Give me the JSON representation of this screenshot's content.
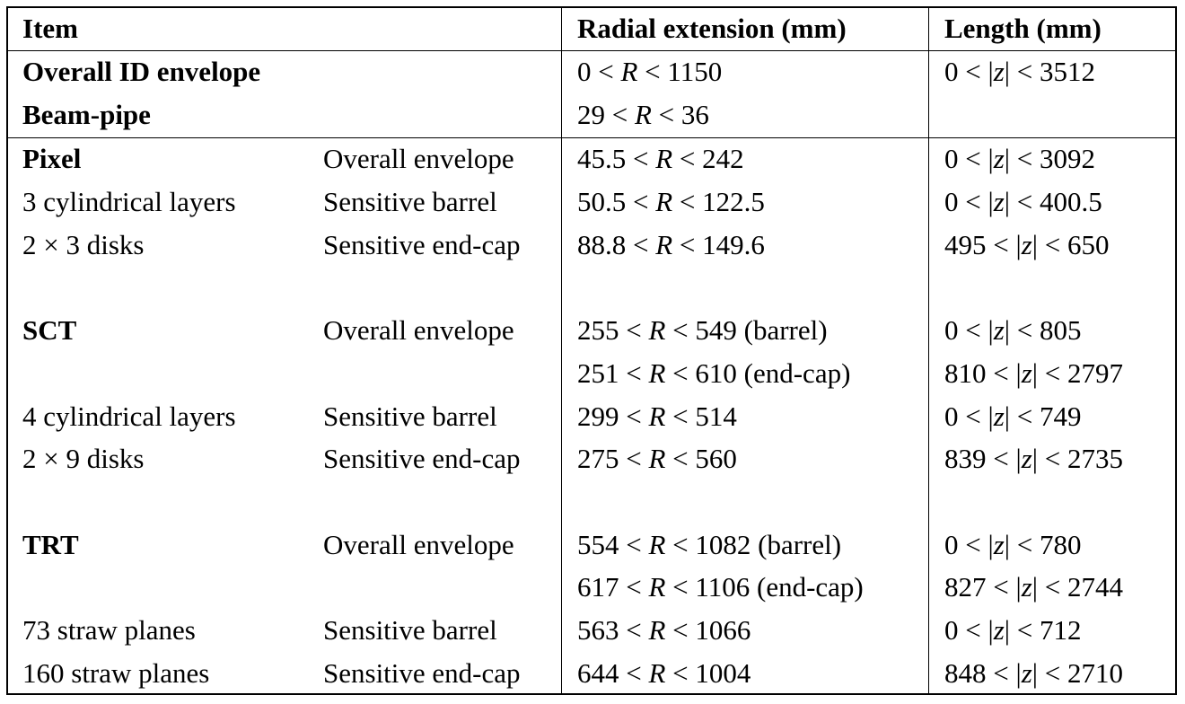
{
  "header": {
    "item": "Item",
    "radial": "Radial extension (mm)",
    "length": "Length (mm)"
  },
  "rows": [
    {
      "item": "Overall ID envelope",
      "item_bold": true,
      "type": "",
      "radial": "0 < R < 1150",
      "length": "0 < |z| < 3512"
    },
    {
      "item": "Beam-pipe",
      "item_bold": true,
      "type": "",
      "radial": "29 < R < 36",
      "length": ""
    },
    {
      "item": "Pixel",
      "item_bold": true,
      "type": "Overall envelope",
      "radial": "45.5 < R < 242",
      "length": "0 < |z| < 3092"
    },
    {
      "item": "3 cylindrical layers",
      "item_bold": false,
      "type": "Sensitive barrel",
      "radial": "50.5 < R < 122.5",
      "length": "0 < |z| < 400.5"
    },
    {
      "item": "2 × 3 disks",
      "item_bold": false,
      "type": "Sensitive end-cap",
      "radial": "88.8 < R < 149.6",
      "length": "495 < |z| < 650"
    },
    {
      "item": "SCT",
      "item_bold": true,
      "type": "Overall envelope",
      "radial": "255 < R < 549 (barrel)",
      "length": "0 < |z| < 805"
    },
    {
      "item": "",
      "item_bold": false,
      "type": "",
      "radial": "251 < R < 610 (end-cap)",
      "length": "810 < |z| < 2797"
    },
    {
      "item": "4 cylindrical layers",
      "item_bold": false,
      "type": "Sensitive barrel",
      "radial": "299 < R < 514",
      "length": "0 < |z| < 749"
    },
    {
      "item": "2 × 9 disks",
      "item_bold": false,
      "type": "Sensitive end-cap",
      "radial": "275 < R < 560",
      "length": "839 < |z| < 2735"
    },
    {
      "item": "TRT",
      "item_bold": true,
      "type": "Overall envelope",
      "radial": "554 < R < 1082 (barrel)",
      "length": "0 < |z| < 780"
    },
    {
      "item": "",
      "item_bold": false,
      "type": "",
      "radial": "617 < R < 1106 (end-cap)",
      "length": "827 < |z| < 2744"
    },
    {
      "item": "73 straw planes",
      "item_bold": false,
      "type": "Sensitive barrel",
      "radial": "563 < R < 1066",
      "length": "0 < |z| < 712"
    },
    {
      "item": "160 straw planes",
      "item_bold": false,
      "type": "Sensitive end-cap",
      "radial": "644 < R < 1004",
      "length": "848 < |z| < 2710"
    }
  ]
}
